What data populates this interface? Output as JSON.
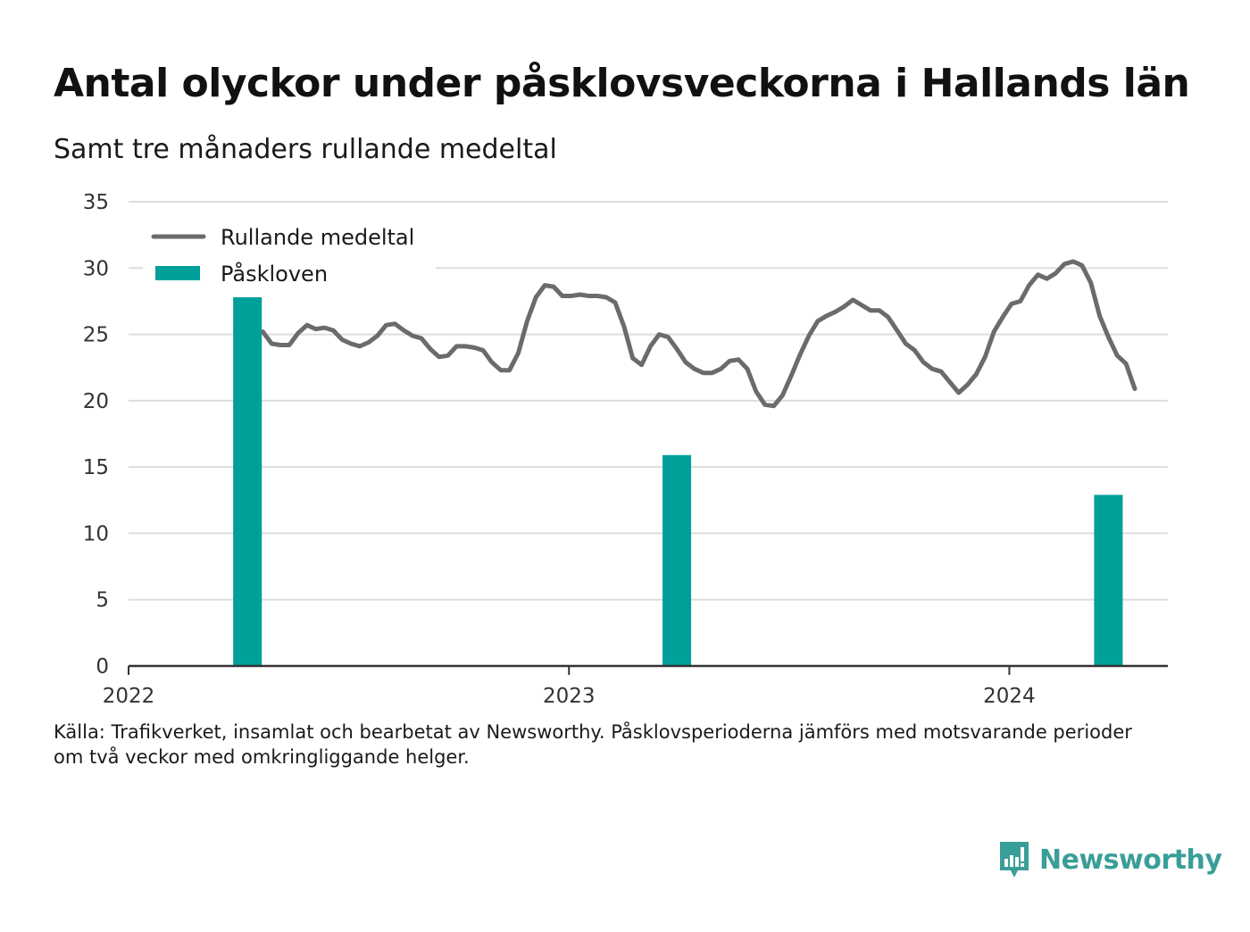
{
  "title": "Antal olyckor under påsklovsveckorna i Hallands län",
  "subtitle": "Samt tre månaders rullande medeltal",
  "source_line1": "Källa: Trafikverket, insamlat och bearbetat av Newsworthy. Påsklovsperioderna jämförs med motsvarande perioder",
  "source_line2": "om två veckor med omkringliggande helger.",
  "brand": {
    "name": "Newsworthy",
    "icon": "newsworthy-logo-icon",
    "color": "#3a9e98"
  },
  "colors": {
    "line": "#6b6b6e",
    "bar": "#00a09a",
    "grid": "#dddddd",
    "axis": "#333333"
  },
  "chart_data": {
    "type": "bar+line",
    "ylim": [
      0,
      35
    ],
    "yticks": [
      0,
      5,
      10,
      15,
      20,
      25,
      30,
      35
    ],
    "xlim": [
      2022.0,
      2024.36
    ],
    "xticks": [
      {
        "value": 2022,
        "label": "2022"
      },
      {
        "value": 2023,
        "label": "2023"
      },
      {
        "value": 2024,
        "label": "2024"
      }
    ],
    "grid": true,
    "legend_position": "top-left",
    "legend": [
      {
        "key": "line",
        "label": "Rullande medeltal"
      },
      {
        "key": "bar",
        "label": "Påskloven"
      }
    ],
    "bars": {
      "name": "Påskloven",
      "width_years": 0.065,
      "points": [
        {
          "x": 2022.27,
          "y": 27.8
        },
        {
          "x": 2023.245,
          "y": 15.9
        },
        {
          "x": 2024.225,
          "y": 12.9
        }
      ]
    },
    "line": {
      "name": "Rullande medeltal",
      "points": [
        [
          2022.305,
          25.2
        ],
        [
          2022.325,
          24.3
        ],
        [
          2022.345,
          24.2
        ],
        [
          2022.365,
          24.2
        ],
        [
          2022.385,
          25.1
        ],
        [
          2022.405,
          25.7
        ],
        [
          2022.425,
          25.4
        ],
        [
          2022.445,
          25.5
        ],
        [
          2022.465,
          25.3
        ],
        [
          2022.485,
          24.6
        ],
        [
          2022.505,
          24.3
        ],
        [
          2022.525,
          24.1
        ],
        [
          2022.545,
          24.4
        ],
        [
          2022.565,
          24.9
        ],
        [
          2022.585,
          25.7
        ],
        [
          2022.605,
          25.8
        ],
        [
          2022.625,
          25.3
        ],
        [
          2022.645,
          24.9
        ],
        [
          2022.665,
          24.7
        ],
        [
          2022.685,
          23.9
        ],
        [
          2022.705,
          23.3
        ],
        [
          2022.725,
          23.4
        ],
        [
          2022.745,
          24.1
        ],
        [
          2022.765,
          24.1
        ],
        [
          2022.785,
          24.0
        ],
        [
          2022.805,
          23.8
        ],
        [
          2022.825,
          22.9
        ],
        [
          2022.845,
          22.3
        ],
        [
          2022.865,
          22.3
        ],
        [
          2022.885,
          23.6
        ],
        [
          2022.905,
          26.0
        ],
        [
          2022.925,
          27.8
        ],
        [
          2022.945,
          28.7
        ],
        [
          2022.965,
          28.6
        ],
        [
          2022.985,
          27.9
        ],
        [
          2023.005,
          27.9
        ],
        [
          2023.025,
          28.0
        ],
        [
          2023.045,
          27.9
        ],
        [
          2023.065,
          27.9
        ],
        [
          2023.085,
          27.8
        ],
        [
          2023.105,
          27.4
        ],
        [
          2023.125,
          25.6
        ],
        [
          2023.145,
          23.2
        ],
        [
          2023.165,
          22.7
        ],
        [
          2023.185,
          24.1
        ],
        [
          2023.205,
          25.0
        ],
        [
          2023.225,
          24.8
        ],
        [
          2023.245,
          23.9
        ],
        [
          2023.265,
          22.9
        ],
        [
          2023.285,
          22.4
        ],
        [
          2023.305,
          22.1
        ],
        [
          2023.325,
          22.1
        ],
        [
          2023.345,
          22.4
        ],
        [
          2023.365,
          23.0
        ],
        [
          2023.385,
          23.1
        ],
        [
          2023.405,
          22.4
        ],
        [
          2023.425,
          20.7
        ],
        [
          2023.445,
          19.7
        ],
        [
          2023.465,
          19.6
        ],
        [
          2023.485,
          20.4
        ],
        [
          2023.505,
          21.9
        ],
        [
          2023.525,
          23.5
        ],
        [
          2023.545,
          24.9
        ],
        [
          2023.565,
          26.0
        ],
        [
          2023.585,
          26.4
        ],
        [
          2023.605,
          26.7
        ],
        [
          2023.625,
          27.1
        ],
        [
          2023.645,
          27.6
        ],
        [
          2023.665,
          27.2
        ],
        [
          2023.685,
          26.8
        ],
        [
          2023.705,
          26.8
        ],
        [
          2023.725,
          26.3
        ],
        [
          2023.745,
          25.3
        ],
        [
          2023.765,
          24.3
        ],
        [
          2023.785,
          23.8
        ],
        [
          2023.805,
          22.9
        ],
        [
          2023.825,
          22.4
        ],
        [
          2023.845,
          22.2
        ],
        [
          2023.865,
          21.4
        ],
        [
          2023.885,
          20.6
        ],
        [
          2023.905,
          21.2
        ],
        [
          2023.925,
          22.0
        ],
        [
          2023.945,
          23.3
        ],
        [
          2023.965,
          25.2
        ],
        [
          2023.985,
          26.3
        ],
        [
          2024.005,
          27.3
        ],
        [
          2024.025,
          27.5
        ],
        [
          2024.045,
          28.7
        ],
        [
          2024.065,
          29.5
        ],
        [
          2024.085,
          29.2
        ],
        [
          2024.105,
          29.6
        ],
        [
          2024.125,
          30.3
        ],
        [
          2024.145,
          30.5
        ],
        [
          2024.165,
          30.2
        ],
        [
          2024.185,
          28.9
        ],
        [
          2024.205,
          26.4
        ],
        [
          2024.225,
          24.8
        ],
        [
          2024.245,
          23.4
        ],
        [
          2024.265,
          22.8
        ],
        [
          2024.285,
          20.9
        ]
      ]
    }
  }
}
